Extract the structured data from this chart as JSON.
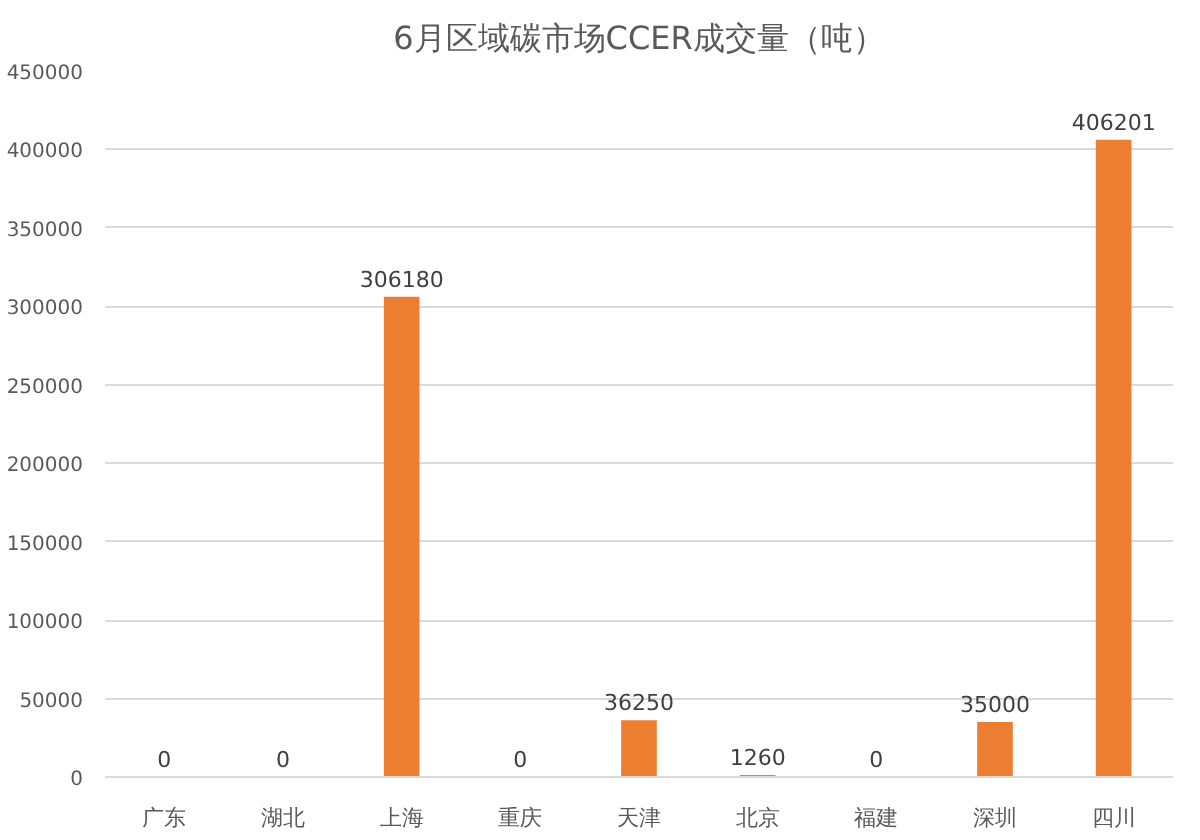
{
  "chart_data": {
    "type": "bar",
    "title": "6月区域碳市场CCER成交量（吨）",
    "categories": [
      "广东",
      "湖北",
      "上海",
      "重庆",
      "天津",
      "北京",
      "福建",
      "深圳",
      "四川"
    ],
    "values": [
      0,
      0,
      306180,
      0,
      36250,
      1260,
      0,
      35000,
      406201
    ],
    "color": "#ed7d31",
    "ylim": [
      0,
      450000
    ],
    "yticks": [
      0,
      50000,
      100000,
      150000,
      200000,
      250000,
      300000,
      350000,
      400000,
      450000
    ],
    "grid": "y",
    "data_labels": true
  }
}
